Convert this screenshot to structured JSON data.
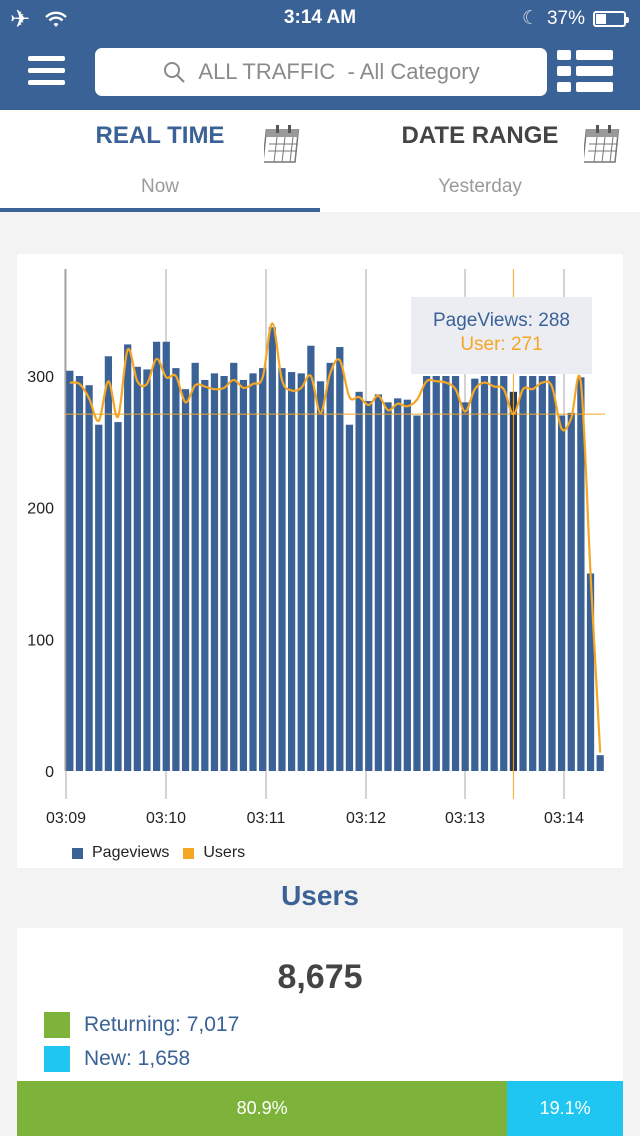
{
  "status_bar": {
    "time": "3:14 AM",
    "battery": "37%",
    "battery_level": 0.37
  },
  "header": {
    "search_text": "ALL TRAFFIC  - All Category",
    "icons": [
      "menu-icon",
      "search-icon",
      "list-view-icon"
    ]
  },
  "tabs": [
    {
      "title": "REAL TIME",
      "subtitle": "Now",
      "active": true,
      "icon": "calendar-icon"
    },
    {
      "title": "DATE RANGE",
      "subtitle": "Yesterday",
      "active": false,
      "icon": "calendar-icon"
    }
  ],
  "colors": {
    "brand": "#3b6296",
    "pageviews": "#3b6296",
    "users": "#f5a623",
    "returning": "#7db33b",
    "new": "#1ec6f1"
  },
  "tooltip": {
    "pageviews": "PageViews: 288",
    "users": "User: 271"
  },
  "chart_data": {
    "type": "bar",
    "x_ticks": [
      "03:09",
      "03:10",
      "03:11",
      "03:12",
      "03:13",
      "03:14"
    ],
    "y_ticks": [
      "0",
      "100",
      "200",
      "300"
    ],
    "ylim": [
      0,
      380
    ],
    "series": [
      {
        "name": "Pageviews",
        "values": [
          304,
          300,
          293,
          263,
          315,
          265,
          324,
          307,
          305,
          326,
          326,
          306,
          290,
          310,
          297,
          302,
          300,
          310,
          297,
          302,
          306,
          337,
          306,
          303,
          302,
          323,
          296,
          310,
          322,
          263,
          288,
          281,
          286,
          280,
          283,
          282,
          270,
          300,
          300,
          300,
          300,
          280,
          298,
          300,
          300,
          300,
          288,
          300,
          300,
          300,
          300,
          270,
          272,
          299,
          150,
          12
        ]
      },
      {
        "name": "Users",
        "values": [
          295,
          294,
          283,
          266,
          296,
          269,
          320,
          296,
          294,
          313,
          299,
          300,
          280,
          293,
          292,
          290,
          291,
          297,
          291,
          294,
          299,
          340,
          297,
          289,
          291,
          300,
          272,
          302,
          312,
          284,
          284,
          278,
          285,
          274,
          279,
          277,
          282,
          296,
          296,
          295,
          290,
          273,
          290,
          295,
          292,
          290,
          271,
          290,
          290,
          295,
          292,
          260,
          268,
          295,
          150,
          14
        ]
      }
    ],
    "highlight_index": 46,
    "legend": [
      "Pageviews",
      "Users"
    ],
    "legend_position": "bottom-left"
  },
  "users": {
    "heading": "Users",
    "total": "8,675",
    "returning_label": "Returning: 7,017",
    "new_label": "New: 1,658",
    "returning_pct": "80.9%",
    "new_pct": "19.1%",
    "returning_fraction": 0.809
  }
}
